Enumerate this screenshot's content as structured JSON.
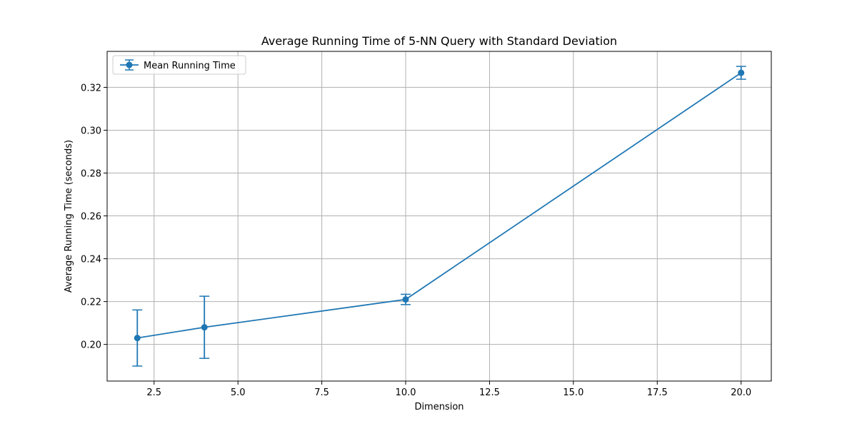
{
  "chart_data": {
    "type": "line",
    "title": "Average Running Time of 5-NN Query with Standard Deviation",
    "xlabel": "Dimension",
    "ylabel": "Average Running Time (seconds)",
    "xlim": [
      1.1,
      20.9
    ],
    "ylim": [
      0.1829,
      0.3368
    ],
    "xticks": [
      2.5,
      5.0,
      7.5,
      10.0,
      12.5,
      15.0,
      17.5,
      20.0
    ],
    "xtick_labels": [
      "2.5",
      "5.0",
      "7.5",
      "10.0",
      "12.5",
      "15.0",
      "17.5",
      "20.0"
    ],
    "yticks": [
      0.2,
      0.22,
      0.24,
      0.26,
      0.28,
      0.3,
      0.32
    ],
    "ytick_labels": [
      "0.20",
      "0.22",
      "0.24",
      "0.26",
      "0.28",
      "0.30",
      "0.32"
    ],
    "grid": true,
    "legend_position": "top-left",
    "series": [
      {
        "name": "Mean Running Time",
        "color": "#1f77b4",
        "x": [
          2,
          4,
          10,
          20
        ],
        "y": [
          0.203,
          0.208,
          0.221,
          0.3268
        ],
        "yerr": [
          0.0131,
          0.0145,
          0.0024,
          0.003
        ]
      }
    ]
  }
}
